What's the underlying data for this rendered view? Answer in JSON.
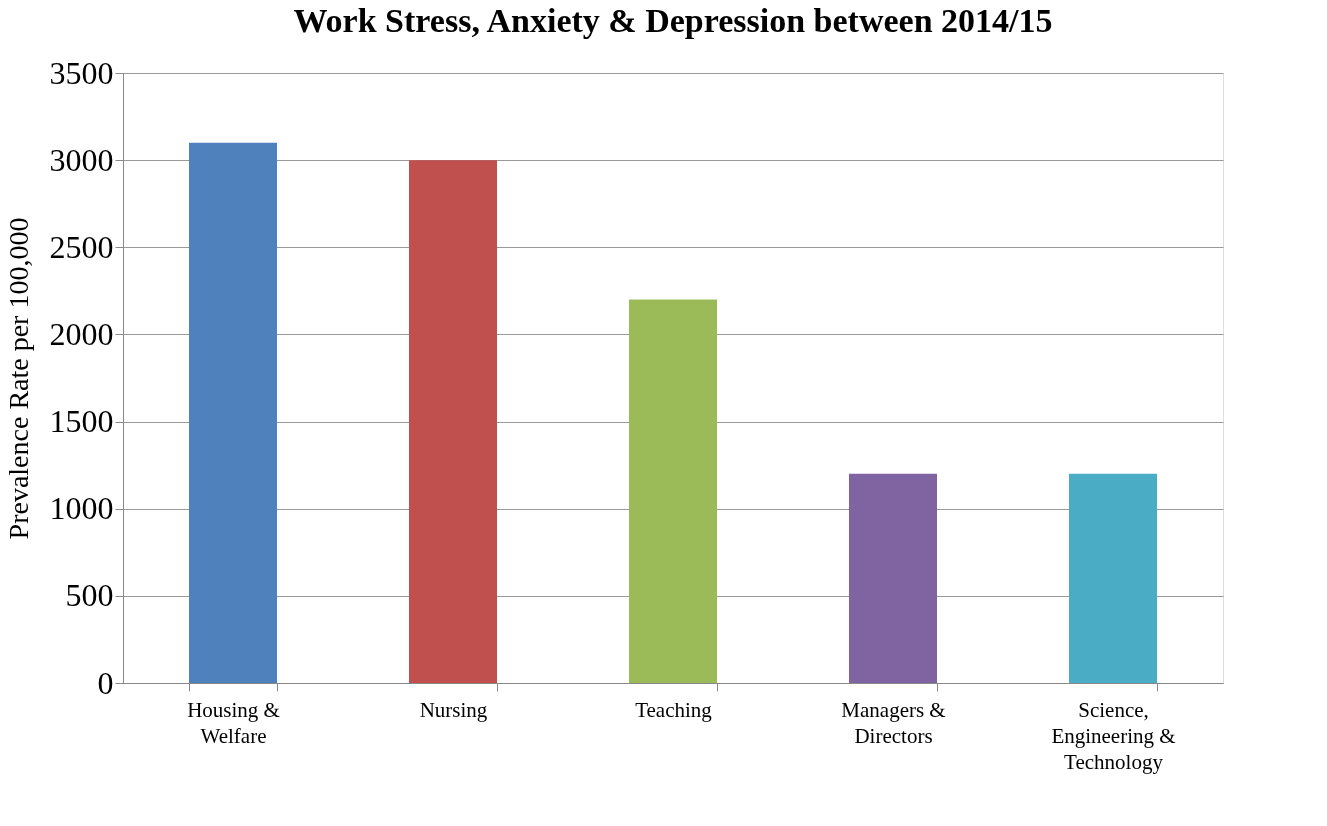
{
  "chart_data": {
    "type": "bar",
    "title": "Work Stress, Anxiety & Depression between 2014/15",
    "ylabel": "Prevalence Rate per 100,000",
    "categories": [
      "Housing &\nWelfare",
      "Nursing",
      "Teaching",
      "Managers &\nDirectors",
      "Science,\nEngineering &\nTechnology"
    ],
    "values": [
      3100,
      3000,
      2200,
      1200,
      1200
    ],
    "colors": [
      "#4f81bd",
      "#c0504d",
      "#9bbb59",
      "#8064a2",
      "#4bacc6"
    ],
    "ylim": [
      0,
      3500
    ],
    "yticks": [
      0,
      500,
      1000,
      1500,
      2000,
      2500,
      3000,
      3500
    ],
    "grid": "y",
    "legend": false
  }
}
